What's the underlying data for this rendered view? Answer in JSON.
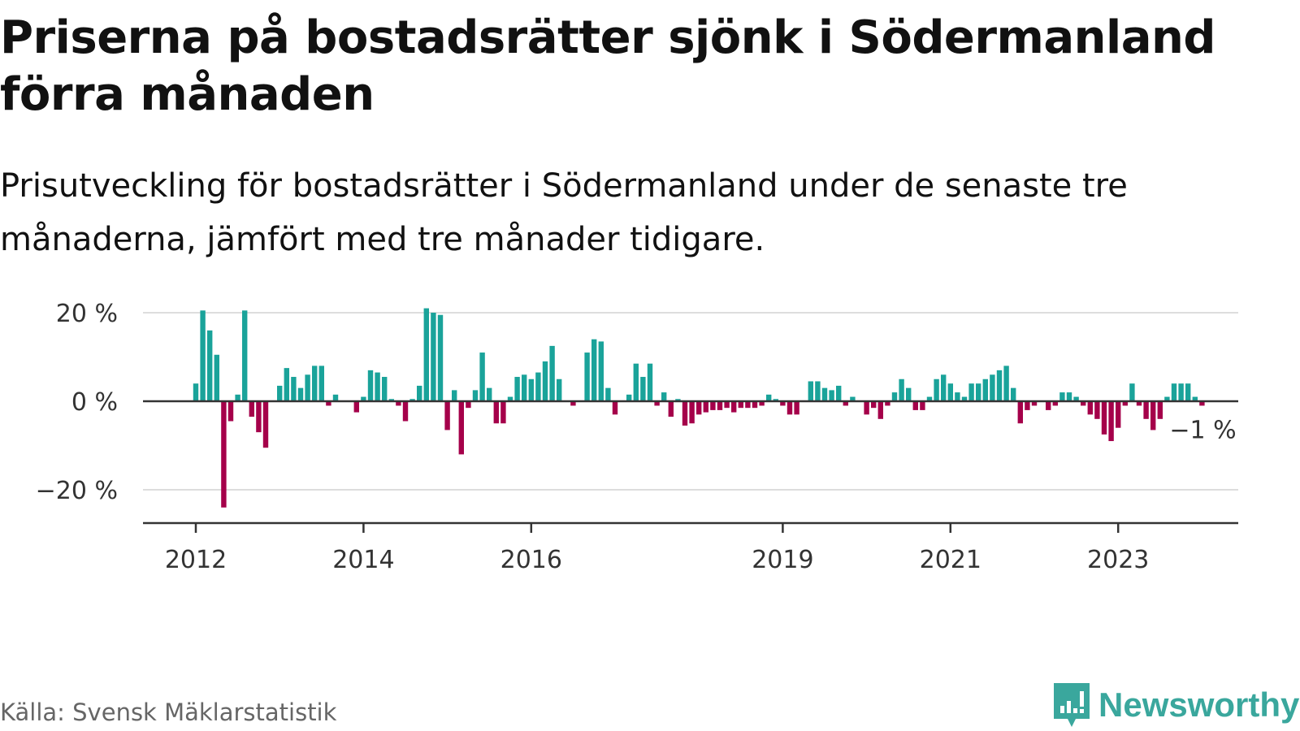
{
  "colors": {
    "positive": "#1aa39a",
    "negative": "#a5004a",
    "baseline": "#333333",
    "grid": "#dddddd",
    "brand": "#3aa79d"
  },
  "source": "Källa: Svensk Mäklarstatistik",
  "brand": {
    "name": "Newsworthy",
    "icon": "newsworthy-logo-icon"
  },
  "chart_data": {
    "type": "bar",
    "title": "Priserna på bostadsrätter sjönk i Södermanland förra månaden",
    "subtitle": "Prisutveckling för bostadsrätter i Södermanland under de senaste tre månaderna, jämfört med tre månader tidigare.",
    "xlabel": "",
    "ylabel": "",
    "ylim": [
      -27,
      25
    ],
    "yticks": [
      {
        "value": 20,
        "label": "20 %"
      },
      {
        "value": 0,
        "label": "0 %"
      },
      {
        "value": -20,
        "label": "−20 %"
      }
    ],
    "xticks": [
      {
        "year": 2012,
        "label": "2012"
      },
      {
        "year": 2014,
        "label": "2014"
      },
      {
        "year": 2016,
        "label": "2016"
      },
      {
        "year": 2019,
        "label": "2019"
      },
      {
        "year": 2021,
        "label": "2021"
      },
      {
        "year": 2023,
        "label": "2023"
      }
    ],
    "start": "2012-01",
    "unit": "%",
    "grid": true,
    "last_label": "−1 %",
    "values": [
      4,
      20.5,
      16,
      10.5,
      -24,
      -4.5,
      1.5,
      20.5,
      -3.5,
      -7,
      -10.5,
      0,
      3.5,
      7.5,
      5.5,
      3,
      6,
      8,
      8,
      -1,
      1.5,
      0,
      0,
      -2.5,
      1,
      7,
      6.5,
      5.5,
      0.5,
      -1,
      -4.5,
      0.5,
      3.5,
      21,
      20,
      19.5,
      -6.5,
      2.5,
      -12,
      -1.5,
      2.5,
      11,
      3,
      -5,
      -5,
      1,
      5.5,
      6,
      5,
      6.5,
      9,
      12.5,
      5,
      0,
      -1,
      0,
      11,
      14,
      13.5,
      3,
      -3,
      0,
      1.5,
      8.5,
      5.5,
      8.5,
      -1,
      2,
      -3.5,
      0.5,
      -5.5,
      -5,
      -3,
      -2.5,
      -2,
      -2,
      -1.5,
      -2.5,
      -1.5,
      -1.5,
      -1.5,
      -1,
      1.5,
      0.5,
      -1,
      -3,
      -3,
      0,
      4.5,
      4.5,
      3,
      2.5,
      3.5,
      -1,
      1,
      0,
      -3,
      -1.5,
      -4,
      -1,
      2,
      5,
      3,
      -2,
      -2,
      1,
      5,
      6,
      4,
      2,
      1,
      4,
      4,
      5,
      6,
      7,
      8,
      3,
      -5,
      -2,
      -1,
      0,
      -2,
      -1,
      2,
      2,
      1,
      -1,
      -3,
      -4,
      -7.5,
      -9,
      -6,
      -1,
      4,
      -1,
      -4,
      -6.5,
      -4,
      1,
      4,
      4,
      4,
      1,
      -1
    ]
  }
}
